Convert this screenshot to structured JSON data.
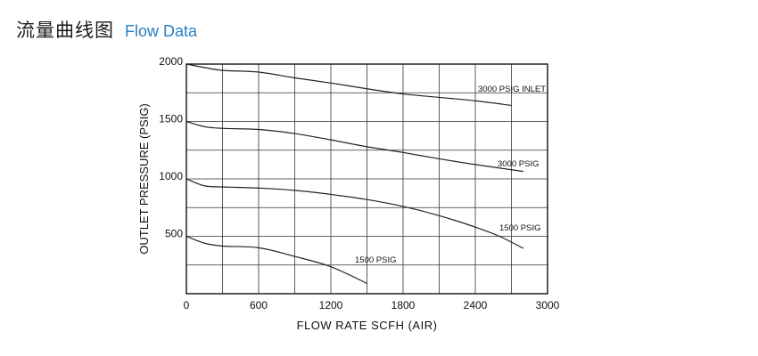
{
  "header": {
    "title_cn": "流量曲线图",
    "title_en": "Flow Data",
    "title_en_color": "#2b7fc1"
  },
  "chart_data": {
    "type": "line",
    "xlabel": "FLOW RATE  SCFH (AIR)",
    "ylabel": "OUTLET  PRESSURE (PSIG)",
    "xlim": [
      0,
      3000
    ],
    "ylim": [
      0,
      2000
    ],
    "x_ticks": [
      0,
      600,
      1200,
      1800,
      2400,
      3000
    ],
    "y_ticks": [
      500,
      1000,
      1500,
      2000
    ],
    "x_grid": [
      0,
      300,
      600,
      900,
      1200,
      1500,
      1800,
      2100,
      2400,
      2700,
      3000
    ],
    "y_grid": [
      0,
      250,
      500,
      750,
      1000,
      1250,
      1500,
      1750,
      2000
    ],
    "grid": true,
    "line_color": "#222222",
    "series": [
      {
        "name": "3000  PSIG INLET",
        "points": [
          [
            0,
            2000
          ],
          [
            150,
            1970
          ],
          [
            300,
            1945
          ],
          [
            600,
            1930
          ],
          [
            900,
            1880
          ],
          [
            1200,
            1835
          ],
          [
            1500,
            1785
          ],
          [
            1800,
            1740
          ],
          [
            2100,
            1710
          ],
          [
            2400,
            1680
          ],
          [
            2700,
            1640
          ]
        ]
      },
      {
        "name": "3000  PSIG",
        "points": [
          [
            0,
            1500
          ],
          [
            150,
            1455
          ],
          [
            300,
            1440
          ],
          [
            600,
            1430
          ],
          [
            900,
            1395
          ],
          [
            1200,
            1340
          ],
          [
            1500,
            1280
          ],
          [
            1800,
            1230
          ],
          [
            2100,
            1175
          ],
          [
            2400,
            1125
          ],
          [
            2800,
            1065
          ]
        ]
      },
      {
        "name": "1500  PSIG",
        "points": [
          [
            0,
            1000
          ],
          [
            150,
            940
          ],
          [
            300,
            930
          ],
          [
            600,
            920
          ],
          [
            900,
            900
          ],
          [
            1200,
            865
          ],
          [
            1500,
            820
          ],
          [
            1800,
            760
          ],
          [
            2100,
            680
          ],
          [
            2400,
            580
          ],
          [
            2600,
            500
          ],
          [
            2800,
            395
          ]
        ]
      },
      {
        "name": "1500  PSIG",
        "points": [
          [
            0,
            500
          ],
          [
            150,
            440
          ],
          [
            300,
            415
          ],
          [
            600,
            400
          ],
          [
            900,
            325
          ],
          [
            1200,
            235
          ],
          [
            1500,
            90
          ]
        ]
      }
    ]
  }
}
